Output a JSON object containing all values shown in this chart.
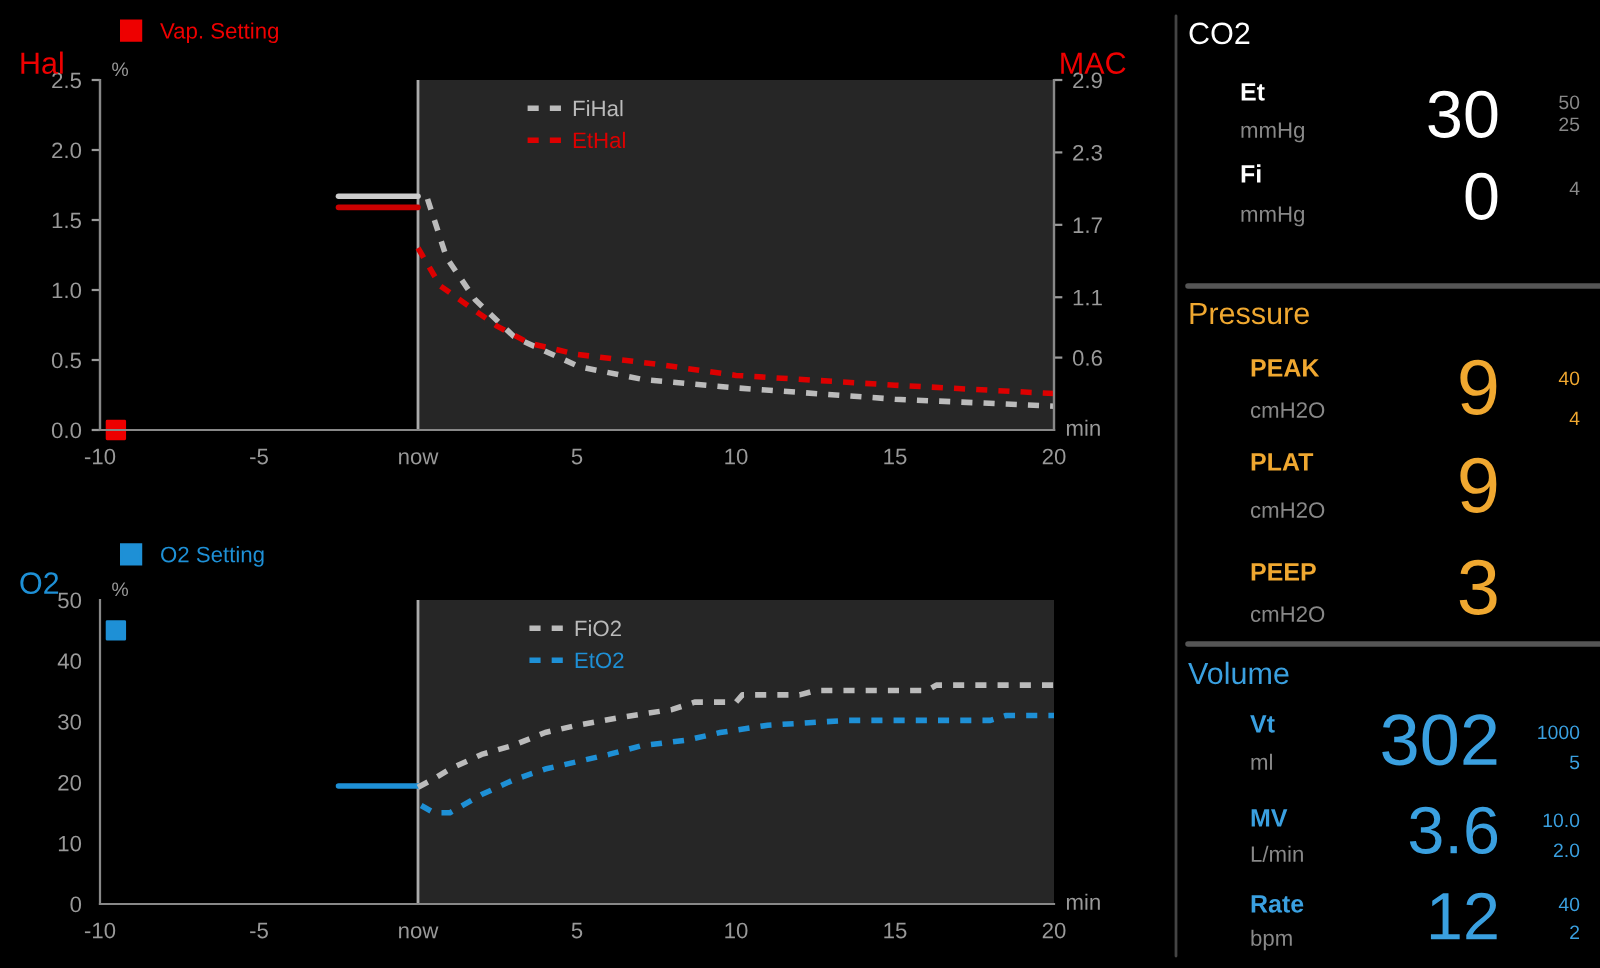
{
  "chart_data": [
    {
      "type": "line",
      "ylabel": "Hal",
      "y2label": "MAC",
      "xlabel": "min",
      "annotations": [
        "%"
      ],
      "legend": "top",
      "line_style": "dashed",
      "xlim": [
        -10,
        20
      ],
      "xticks": [
        -10,
        -5,
        {
          "value": 0,
          "label": "now"
        },
        5,
        10,
        15,
        20
      ],
      "ylim": [
        0,
        2.5
      ],
      "yticks": [
        {
          "value": 0,
          "label": "0.0"
        },
        0.5,
        {
          "value": 1,
          "label": "1.0"
        },
        1.5,
        {
          "value": 2,
          "label": "2.0"
        },
        2.5
      ],
      "y2lim": [
        0,
        2.9
      ],
      "y2ticks": [
        0.6,
        1.1,
        1.7,
        2.3,
        2.9
      ],
      "bands": [
        {
          "axis": "x",
          "from": 0,
          "to": 20,
          "color": "#262626"
        }
      ],
      "ref_lines": [
        {
          "axis": "x",
          "value": 0,
          "color": "#aaaaaa"
        }
      ],
      "series": [
        {
          "type": "scatter",
          "name": "Vap. Setting",
          "color": "#ee0000",
          "marker": "square",
          "x": [
            -9.5
          ],
          "values": [
            0
          ]
        },
        {
          "type": "line",
          "color": "#cccccc",
          "line_style": "solid",
          "x": [
            -2.5,
            0
          ],
          "values": [
            1.67,
            1.67
          ]
        },
        {
          "type": "line",
          "color": "#cc0000",
          "line_style": "solid",
          "x": [
            -2.5,
            0
          ],
          "values": [
            1.59,
            1.59
          ]
        },
        {
          "name": "FiHal",
          "color": "#bbbbbb",
          "x": [
            0.3,
            0.9,
            1.8,
            3.05,
            5.1,
            7.1,
            10.05,
            15,
            20
          ],
          "values": [
            1.65,
            1.23,
            0.93,
            0.66,
            0.45,
            0.36,
            0.3,
            0.22,
            0.17
          ]
        },
        {
          "name": "EtHal",
          "color": "#dd0000",
          "x": [
            0,
            0.7,
            1.5,
            2.5,
            3.5,
            5,
            7.5,
            10,
            15,
            20
          ],
          "values": [
            1.3,
            1.03,
            0.9,
            0.74,
            0.62,
            0.54,
            0.47,
            0.39,
            0.32,
            0.26
          ]
        }
      ]
    },
    {
      "type": "line",
      "ylabel": "O2",
      "xlabel": "min",
      "annotations": [
        "%"
      ],
      "legend": "top",
      "line_style": "dashed",
      "xlim": [
        -10,
        20
      ],
      "xticks": [
        -10,
        -5,
        {
          "value": 0,
          "label": "now"
        },
        5,
        10,
        15,
        20
      ],
      "ylim": [
        0,
        50
      ],
      "yticks": [
        0,
        10,
        20,
        30,
        40,
        50
      ],
      "bands": [
        {
          "axis": "x",
          "from": 0,
          "to": 20,
          "color": "#262626"
        }
      ],
      "ref_lines": [
        {
          "axis": "x",
          "value": 0,
          "color": "#aaaaaa"
        }
      ],
      "series": [
        {
          "type": "scatter",
          "name": "O2 Setting",
          "color": "#1e90d6",
          "marker": "square",
          "x": [
            -9.5
          ],
          "values": [
            45
          ]
        },
        {
          "type": "line",
          "color": "#1e90d6",
          "line_style": "solid",
          "x": [
            -2.5,
            0
          ],
          "values": [
            19.4,
            19.4
          ]
        },
        {
          "name": "FiO2",
          "color": "#bbbbbb",
          "x": [
            0,
            0.5,
            1,
            2,
            3,
            4,
            5,
            6.5,
            8,
            8.7,
            10,
            10.2,
            12,
            12.5,
            16,
            16.3,
            20
          ],
          "values": [
            19.2,
            20.6,
            22.2,
            24.6,
            26.1,
            28.2,
            29.4,
            30.8,
            32,
            33.2,
            33.2,
            34.4,
            34.4,
            35.1,
            35.1,
            36,
            36
          ]
        },
        {
          "name": "EtO2",
          "color": "#1e90d6",
          "x": [
            0.1,
            0.5,
            1,
            2,
            3,
            4,
            5,
            6,
            7,
            8.5,
            9.5,
            11,
            13.5,
            18,
            18.5,
            20
          ],
          "values": [
            16.2,
            15,
            15,
            18,
            20.4,
            22.2,
            23.4,
            24.6,
            26,
            27,
            28.2,
            29.4,
            30.2,
            30.2,
            31,
            31
          ]
        }
      ]
    },
    {
      "type": "other",
      "annotations": [
        "CO2",
        "Et",
        "mmHg",
        "30",
        "50",
        "25",
        "Fi",
        "mmHg",
        "0",
        "4",
        "Pressure",
        "PEAK",
        "cmH2O",
        "9",
        "40",
        "4",
        "PLAT",
        "cmH2O",
        "9",
        "PEEP",
        "cmH2O",
        "3",
        "Volume",
        "Vt",
        "ml",
        "302",
        "1000",
        "5",
        "MV",
        "L/min",
        "3.6",
        "10.0",
        "2.0",
        "Rate",
        "bpm",
        "12",
        "40",
        "2"
      ]
    }
  ]
}
